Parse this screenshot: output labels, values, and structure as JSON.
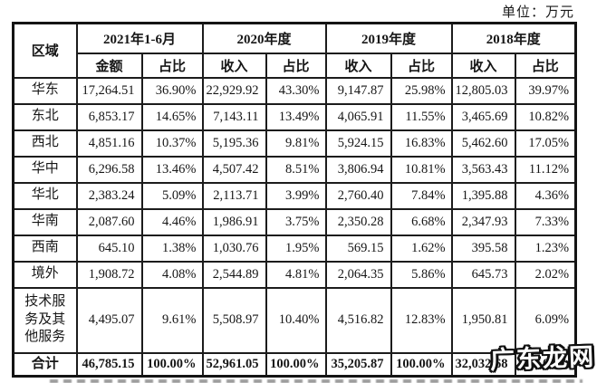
{
  "meta": {
    "unit_label": "单位：万元"
  },
  "watermark": {
    "text": "广东龙网",
    "fill_color": "#ffffff",
    "outline_color": "#101010"
  },
  "table": {
    "region_header": "区域",
    "period_groups": [
      {
        "label": "2021年1-6月",
        "sub": [
          "金额",
          "占比"
        ]
      },
      {
        "label": "2020年度",
        "sub": [
          "收入",
          "占比"
        ]
      },
      {
        "label": "2019年度",
        "sub": [
          "收入",
          "占比"
        ]
      },
      {
        "label": "2018年度",
        "sub": [
          "收入",
          "占比"
        ]
      }
    ],
    "rows": [
      {
        "region": "华东",
        "values": [
          "17,264.51",
          "36.90%",
          "22,929.92",
          "43.30%",
          "9,147.87",
          "25.98%",
          "12,805.03",
          "39.97%"
        ],
        "is_total": false
      },
      {
        "region": "东北",
        "values": [
          "6,853.17",
          "14.65%",
          "7,143.11",
          "13.49%",
          "4,065.91",
          "11.55%",
          "3,465.69",
          "10.82%"
        ],
        "is_total": false
      },
      {
        "region": "西北",
        "values": [
          "4,851.16",
          "10.37%",
          "5,195.36",
          "9.81%",
          "5,924.15",
          "16.83%",
          "5,462.60",
          "17.05%"
        ],
        "is_total": false
      },
      {
        "region": "华中",
        "values": [
          "6,296.58",
          "13.46%",
          "4,507.42",
          "8.51%",
          "3,806.94",
          "10.81%",
          "3,563.43",
          "11.12%"
        ],
        "is_total": false
      },
      {
        "region": "华北",
        "values": [
          "2,383.24",
          "5.09%",
          "2,113.71",
          "3.99%",
          "2,760.40",
          "7.84%",
          "1,395.88",
          "4.36%"
        ],
        "is_total": false
      },
      {
        "region": "华南",
        "values": [
          "2,087.60",
          "4.46%",
          "1,986.91",
          "3.75%",
          "2,350.28",
          "6.68%",
          "2,347.93",
          "7.33%"
        ],
        "is_total": false
      },
      {
        "region": "西南",
        "values": [
          "645.10",
          "1.38%",
          "1,030.76",
          "1.95%",
          "569.15",
          "1.62%",
          "395.58",
          "1.23%"
        ],
        "is_total": false
      },
      {
        "region": "境外",
        "values": [
          "1,908.72",
          "4.08%",
          "2,544.89",
          "4.81%",
          "2,064.35",
          "5.86%",
          "645.73",
          "2.02%"
        ],
        "is_total": false
      },
      {
        "region": "技术服务及其他服务",
        "values": [
          "4,495.07",
          "9.61%",
          "5,508.97",
          "10.40%",
          "4,516.82",
          "12.83%",
          "1,950.81",
          "6.09%"
        ],
        "is_total": false
      },
      {
        "region": "合计",
        "values": [
          "46,785.15",
          "100.00%",
          "52,961.05",
          "100.00%",
          "35,205.87",
          "100.00%",
          "32,032.68",
          "100.00%"
        ],
        "is_total": true
      }
    ]
  }
}
